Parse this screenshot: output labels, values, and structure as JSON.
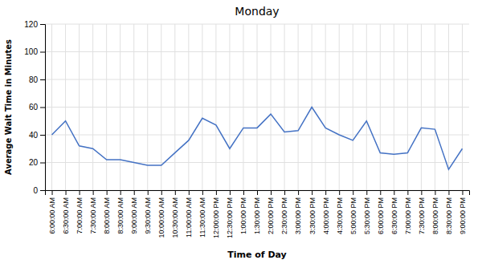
{
  "chart_data": {
    "type": "line",
    "title": "Monday",
    "xlabel": "Time of Day",
    "ylabel": "Average Wait Time in Minutes",
    "categories": [
      "6:00:00 AM",
      "6:30:00 AM",
      "7:00:00 AM",
      "7:30:00 AM",
      "8:00:00 AM",
      "8:30:00 AM",
      "9:00:00 AM",
      "9:30:00 AM",
      "10:00:00 AM",
      "10:30:00 AM",
      "11:00:00 AM",
      "11:30:00 AM",
      "12:00:00 PM",
      "12:30:00 PM",
      "1:00:00 PM",
      "1:30:00 PM",
      "2:00:00 PM",
      "2:30:00 PM",
      "3:00:00 PM",
      "3:30:00 PM",
      "4:00:00 PM",
      "4:30:00 PM",
      "5:00:00 PM",
      "5:30:00 PM",
      "6:00:00 PM",
      "6:30:00 PM",
      "7:00:00 PM",
      "7:30:00 PM",
      "8:00:00 PM",
      "8:30:00 PM",
      "9:00:00 PM"
    ],
    "values": [
      40,
      50,
      32,
      30,
      22,
      22,
      20,
      18,
      18,
      27,
      36,
      52,
      47,
      30,
      45,
      45,
      55,
      42,
      43,
      60,
      45,
      40,
      36,
      50,
      27,
      26,
      27,
      45,
      44,
      15,
      30
    ],
    "color": "#4472C4",
    "ylim": [
      0,
      120
    ],
    "yticks": [
      0,
      20,
      40,
      60,
      80,
      100,
      120
    ],
    "grid": true
  }
}
